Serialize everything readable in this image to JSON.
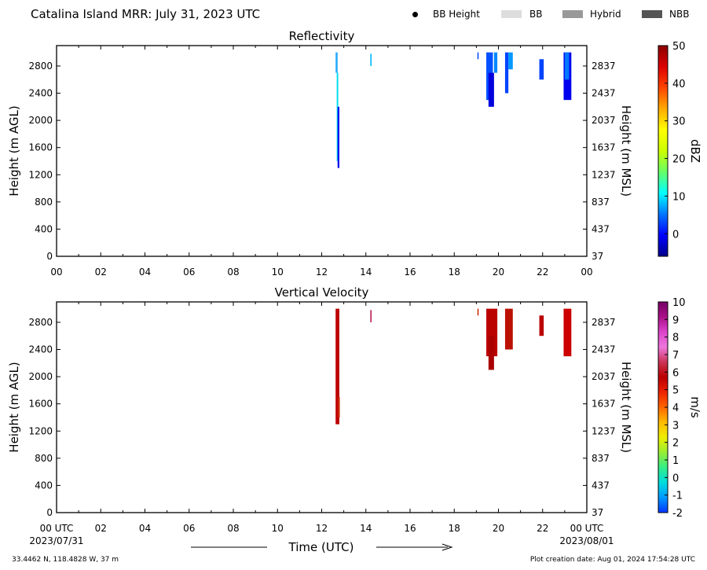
{
  "header": {
    "title": "Catalina Island MRR:  July 31, 2023 UTC",
    "legend": [
      {
        "label": "BB Height",
        "marker": "dot",
        "color": "#000000"
      },
      {
        "label": "BB",
        "marker": "swatch",
        "color": "#dddddd"
      },
      {
        "label": "Hybrid",
        "marker": "swatch",
        "color": "#999999"
      },
      {
        "label": "NBB",
        "marker": "swatch",
        "color": "#555555"
      }
    ]
  },
  "footer": {
    "location": "33.4462 N, 118.4828 W, 37 m",
    "creation": "Plot creation date: Aug 01, 2024 17:54:28 UTC",
    "xlabel": "Time (UTC)",
    "start_date": "2023/07/31",
    "end_date": "2023/08/01"
  },
  "chart_data": [
    {
      "type": "heatmap",
      "title": "Reflectivity",
      "xlabel": "",
      "ylabel": "Height (m AGL)",
      "y2label": "Height (m MSL)",
      "xlim": [
        0,
        24
      ],
      "ylim": [
        0,
        3100
      ],
      "x_ticks": [
        "00",
        "02",
        "04",
        "06",
        "08",
        "10",
        "12",
        "14",
        "16",
        "18",
        "20",
        "22",
        "00"
      ],
      "y_ticks": [
        0,
        400,
        800,
        1200,
        1600,
        2000,
        2400,
        2800
      ],
      "y2_ticks": [
        "37",
        "437",
        "837",
        "1237",
        "1637",
        "2037",
        "2437",
        "2837"
      ],
      "colorbar": {
        "label": "dBZ",
        "range": [
          -6,
          50
        ],
        "ticks": [
          0,
          10,
          20,
          30,
          40,
          50
        ],
        "colors": [
          "#00008b",
          "#0000ff",
          "#0077ff",
          "#00ffff",
          "#66ff66",
          "#ccff00",
          "#ffff00",
          "#ffaa00",
          "#ff4400",
          "#dd0000",
          "#8b0000"
        ]
      },
      "echoes": [
        {
          "t_start": 12.63,
          "t_end": 12.72,
          "h_bottom": 2700,
          "h_top": 3000,
          "color": "#22aaff"
        },
        {
          "t_start": 12.68,
          "t_end": 12.75,
          "h_bottom": 1400,
          "h_top": 2700,
          "color": "#00ddee"
        },
        {
          "t_start": 12.72,
          "t_end": 12.8,
          "h_bottom": 1300,
          "h_top": 2200,
          "color": "#0000ee"
        },
        {
          "t_start": 14.2,
          "t_end": 14.26,
          "h_bottom": 2800,
          "h_top": 2980,
          "color": "#00bbff"
        },
        {
          "t_start": 19.05,
          "t_end": 19.08,
          "h_bottom": 2900,
          "h_top": 3000,
          "color": "#0044ff"
        },
        {
          "t_start": 19.45,
          "t_end": 19.75,
          "h_bottom": 2300,
          "h_top": 3000,
          "color": "#0050ff"
        },
        {
          "t_start": 19.55,
          "t_end": 19.8,
          "h_bottom": 2200,
          "h_top": 2700,
          "color": "#0000dd"
        },
        {
          "t_start": 19.8,
          "t_end": 19.95,
          "h_bottom": 2700,
          "h_top": 3000,
          "color": "#0088ff"
        },
        {
          "t_start": 20.3,
          "t_end": 20.45,
          "h_bottom": 2400,
          "h_top": 3000,
          "color": "#0044ff"
        },
        {
          "t_start": 20.45,
          "t_end": 20.65,
          "h_bottom": 2750,
          "h_top": 3000,
          "color": "#0099ff"
        },
        {
          "t_start": 21.85,
          "t_end": 22.05,
          "h_bottom": 2600,
          "h_top": 2900,
          "color": "#0044ff"
        },
        {
          "t_start": 22.95,
          "t_end": 23.3,
          "h_bottom": 2300,
          "h_top": 3000,
          "color": "#0000ee"
        },
        {
          "t_start": 23.0,
          "t_end": 23.2,
          "h_bottom": 2600,
          "h_top": 3000,
          "color": "#0077ff"
        }
      ]
    },
    {
      "type": "heatmap",
      "title": "Vertical Velocity",
      "xlabel": "Time (UTC)",
      "ylabel": "Height (m AGL)",
      "y2label": "Height (m MSL)",
      "xlim": [
        0,
        24
      ],
      "ylim": [
        0,
        3100
      ],
      "x_ticks": [
        "00 UTC",
        "02",
        "04",
        "06",
        "08",
        "10",
        "12",
        "14",
        "16",
        "18",
        "20",
        "22",
        "00 UTC"
      ],
      "y_ticks": [
        0,
        400,
        800,
        1200,
        1600,
        2000,
        2400,
        2800
      ],
      "y2_ticks": [
        "37",
        "437",
        "837",
        "1237",
        "1637",
        "2037",
        "2437",
        "2837"
      ],
      "colorbar": {
        "label": "m/s",
        "range": [
          -2,
          10
        ],
        "ticks": [
          -2,
          -1,
          0,
          1,
          2,
          3,
          4,
          5,
          6,
          7,
          8,
          9,
          10
        ],
        "colors": [
          "#0033ff",
          "#0099ff",
          "#00dddd",
          "#33ee88",
          "#99ee33",
          "#eeee00",
          "#ffbb00",
          "#ff6600",
          "#ee2200",
          "#bb0000",
          "#cc3355",
          "#ee77dd",
          "#dd44cc",
          "#aa1188",
          "#770066"
        ]
      },
      "echoes": [
        {
          "t_start": 12.63,
          "t_end": 12.8,
          "h_bottom": 1300,
          "h_top": 3000,
          "color": "#bb0000"
        },
        {
          "t_start": 12.72,
          "t_end": 12.82,
          "h_bottom": 1400,
          "h_top": 1700,
          "color": "#cc2200"
        },
        {
          "t_start": 14.2,
          "t_end": 14.26,
          "h_bottom": 2800,
          "h_top": 2980,
          "color": "#bb2255"
        },
        {
          "t_start": 19.05,
          "t_end": 19.08,
          "h_bottom": 2900,
          "h_top": 3000,
          "color": "#cc2200"
        },
        {
          "t_start": 19.45,
          "t_end": 19.95,
          "h_bottom": 2300,
          "h_top": 3000,
          "color": "#bb0000"
        },
        {
          "t_start": 19.55,
          "t_end": 19.8,
          "h_bottom": 2100,
          "h_top": 2600,
          "color": "#aa0000"
        },
        {
          "t_start": 20.3,
          "t_end": 20.65,
          "h_bottom": 2400,
          "h_top": 3000,
          "color": "#bb1100"
        },
        {
          "t_start": 21.85,
          "t_end": 22.05,
          "h_bottom": 2600,
          "h_top": 2900,
          "color": "#bb0000"
        },
        {
          "t_start": 22.95,
          "t_end": 23.3,
          "h_bottom": 2300,
          "h_top": 3000,
          "color": "#cc0000"
        }
      ]
    }
  ]
}
